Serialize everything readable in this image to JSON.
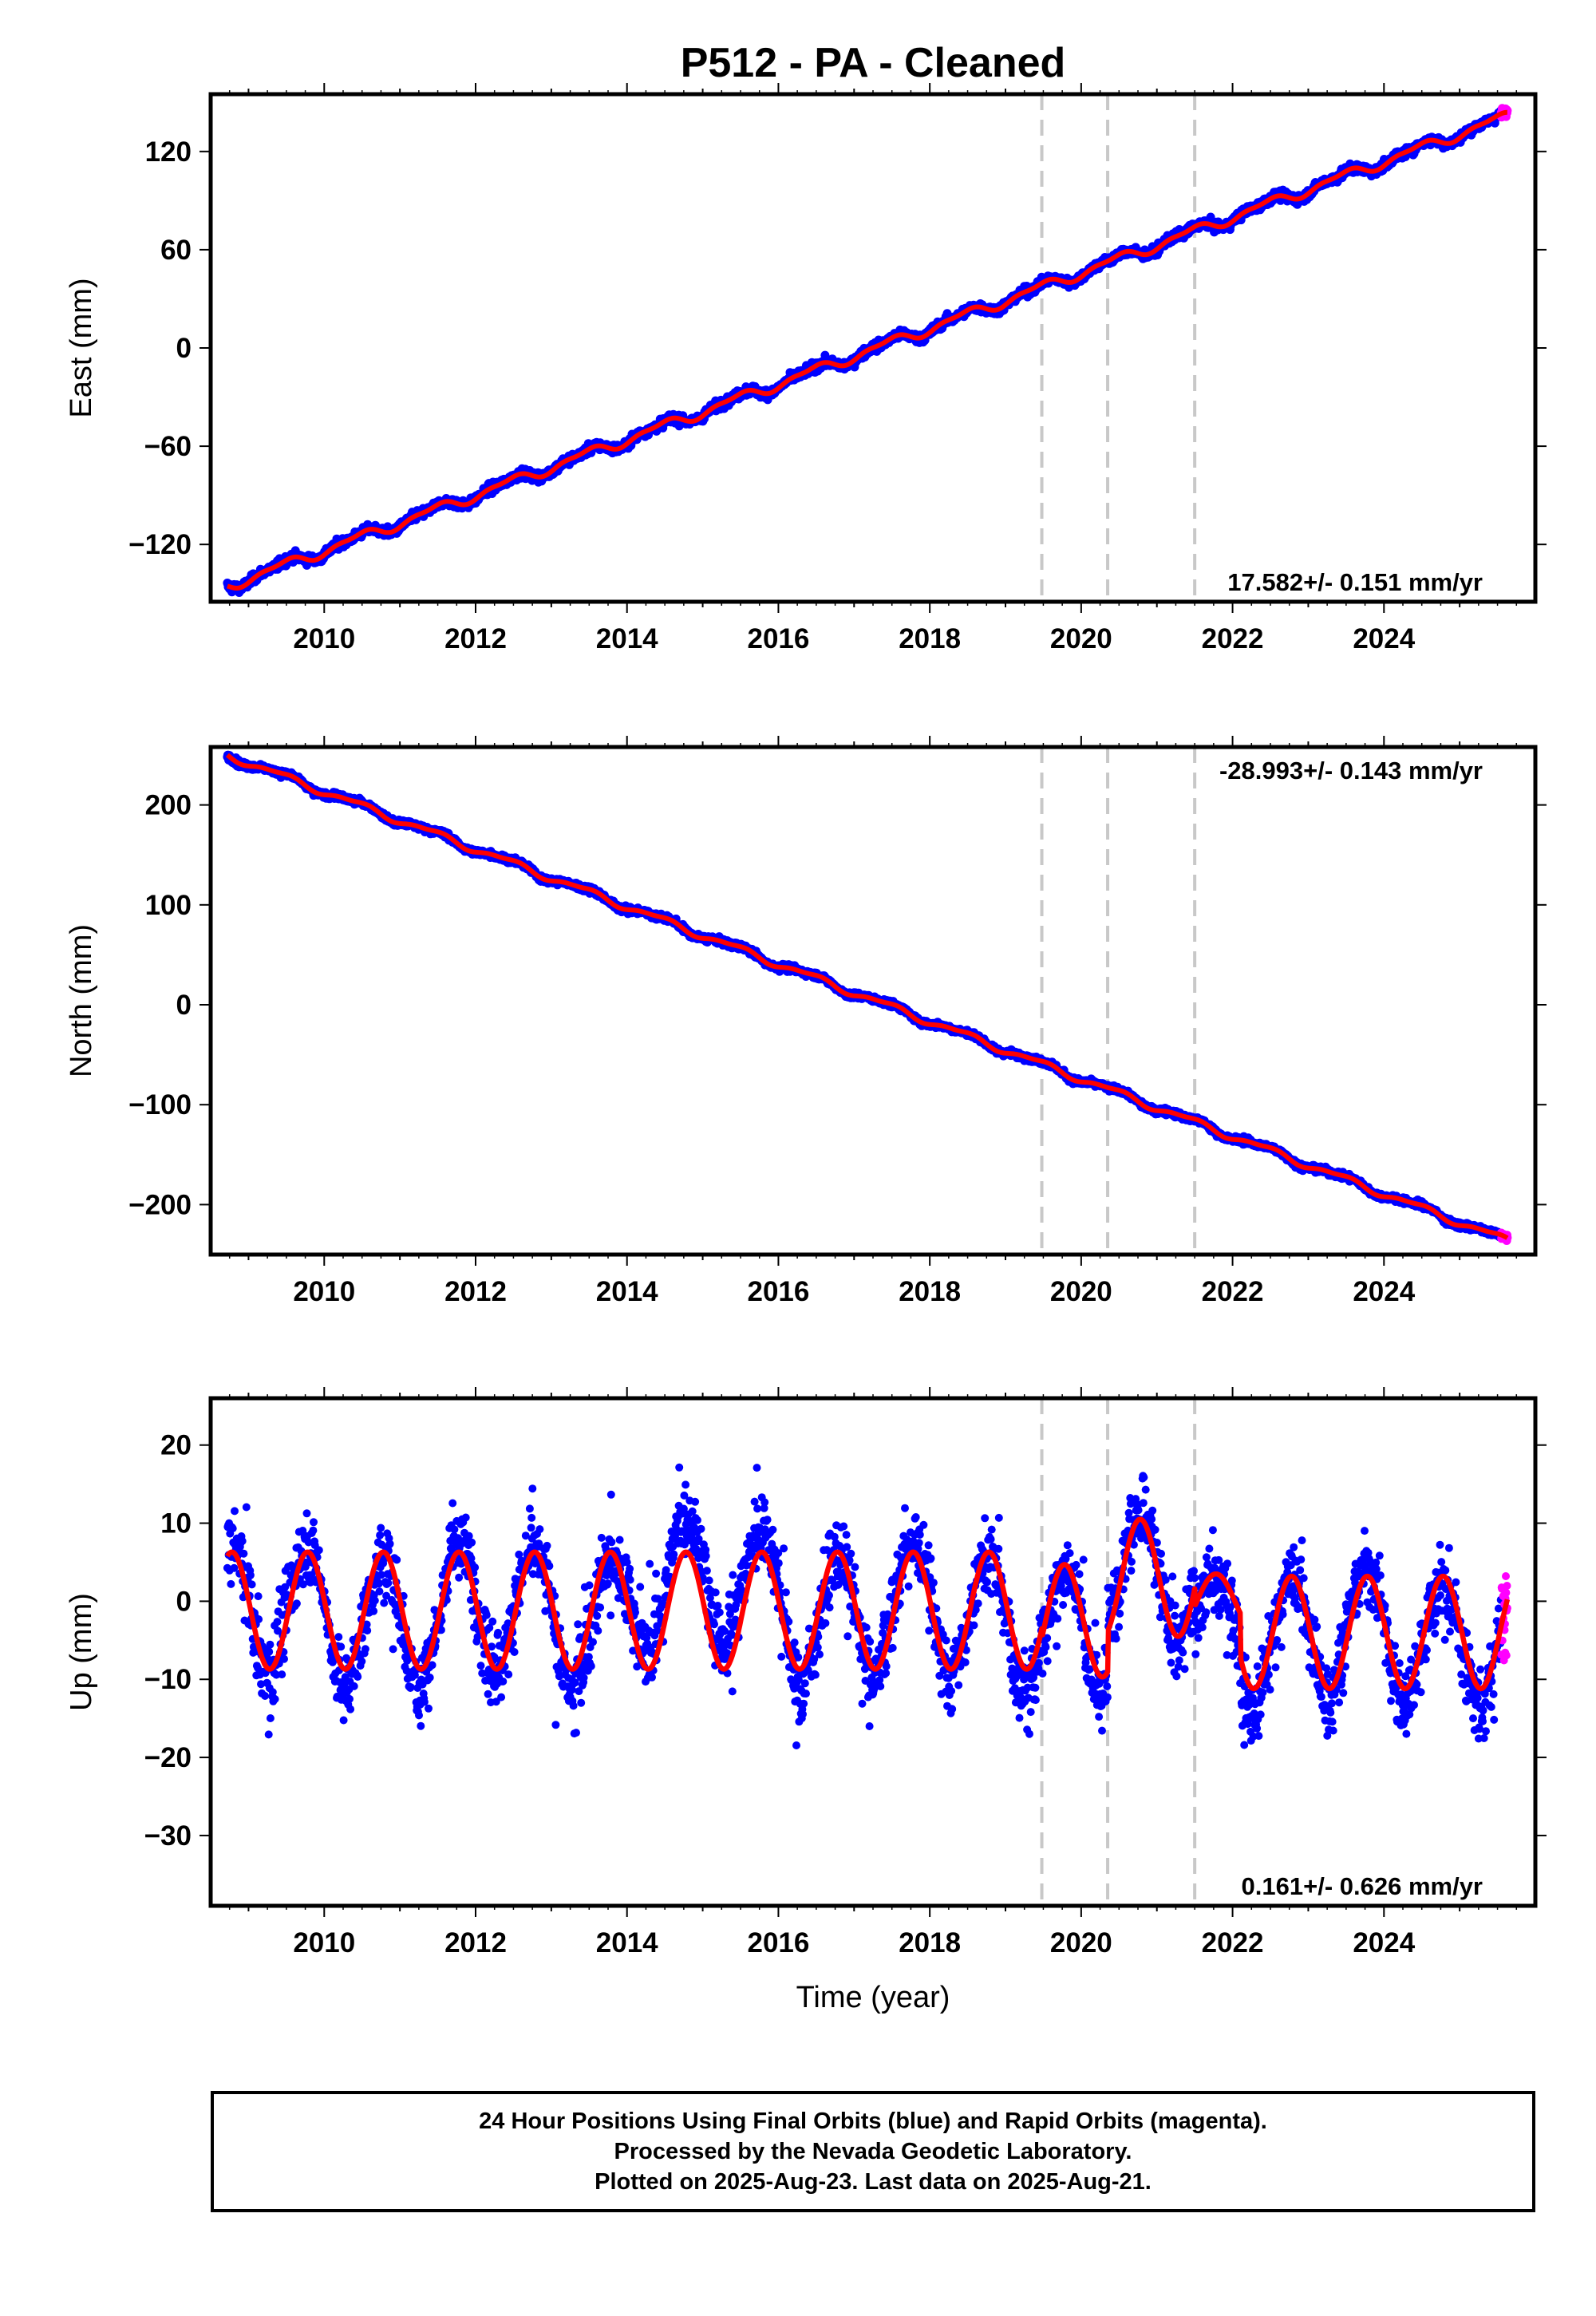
{
  "title": "P512  - PA - Cleaned",
  "xlabel": "Time (year)",
  "caption": [
    "24 Hour Positions Using Final Orbits (blue) and Rapid Orbits (magenta).",
    "Processed by the Nevada Geodetic Laboratory.",
    "Plotted on 2025-Aug-23. Last data on 2025-Aug-21."
  ],
  "colors": {
    "final": "#0000ff",
    "rapid": "#ff00ff",
    "model": "#ff0000",
    "breaks": "#c8c8c8"
  },
  "chart_data": [
    {
      "type": "scatter",
      "ylabel": "East (mm)",
      "rate": "17.582+/- 0.151 mm/yr",
      "rate_position": "bottom-right",
      "xlim": [
        2008.5,
        2026.0
      ],
      "ylim": [
        -155,
        155
      ],
      "xticks": [
        2010,
        2012,
        2014,
        2016,
        2018,
        2020,
        2022,
        2024
      ],
      "yticks": [
        -120,
        -60,
        0,
        60,
        120
      ],
      "ytick_labels": [
        "−120",
        "−60",
        "0",
        "60",
        "120"
      ],
      "start": [
        2008.72,
        -145.5
      ],
      "end": [
        2025.63,
        141.5
      ],
      "breaks": [
        2019.48,
        2020.35,
        2021.5
      ],
      "series": [
        {
          "name": "Final Orbits (blue)",
          "kind": "points"
        },
        {
          "name": "Rapid Orbits (magenta)",
          "kind": "points"
        },
        {
          "kind": "line"
        }
      ]
    },
    {
      "type": "scatter",
      "ylabel": "North (mm)",
      "rate": "-28.993+/- 0.143 mm/yr",
      "rate_position": "top-right",
      "xlim": [
        2008.5,
        2026.0
      ],
      "ylim": [
        -250,
        258
      ],
      "xticks": [
        2010,
        2012,
        2014,
        2016,
        2018,
        2020,
        2022,
        2024
      ],
      "yticks": [
        -200,
        -100,
        0,
        100,
        200
      ],
      "ytick_labels": [
        "−200",
        "−100",
        "0",
        "100",
        "200"
      ],
      "start": [
        2008.72,
        250
      ],
      "end": [
        2025.63,
        -236
      ],
      "breaks": [
        2019.48,
        2020.35,
        2021.5
      ],
      "series": [
        {
          "name": "Final Orbits (blue)",
          "kind": "points"
        },
        {
          "name": "Rapid Orbits (magenta)",
          "kind": "points"
        },
        {
          "kind": "line"
        }
      ]
    },
    {
      "type": "scatter",
      "ylabel": "Up (mm)",
      "rate": "0.161+/- 0.626 mm/yr",
      "rate_position": "bottom-right",
      "xlim": [
        2008.5,
        2026.0
      ],
      "ylim": [
        -39,
        26
      ],
      "xticks": [
        2010,
        2012,
        2014,
        2016,
        2018,
        2020,
        2022,
        2024
      ],
      "yticks": [
        -30,
        -20,
        -10,
        0,
        10,
        20
      ],
      "ytick_labels": [
        "−30",
        "−20",
        "−10",
        "0",
        "10",
        "20"
      ],
      "seasonal_amplitude": 7.5,
      "breaks": [
        2019.48,
        2020.35,
        2021.5
      ],
      "series": [
        {
          "name": "Final Orbits (blue)",
          "kind": "points"
        },
        {
          "name": "Rapid Orbits (magenta)",
          "kind": "points"
        },
        {
          "kind": "line"
        }
      ]
    }
  ]
}
